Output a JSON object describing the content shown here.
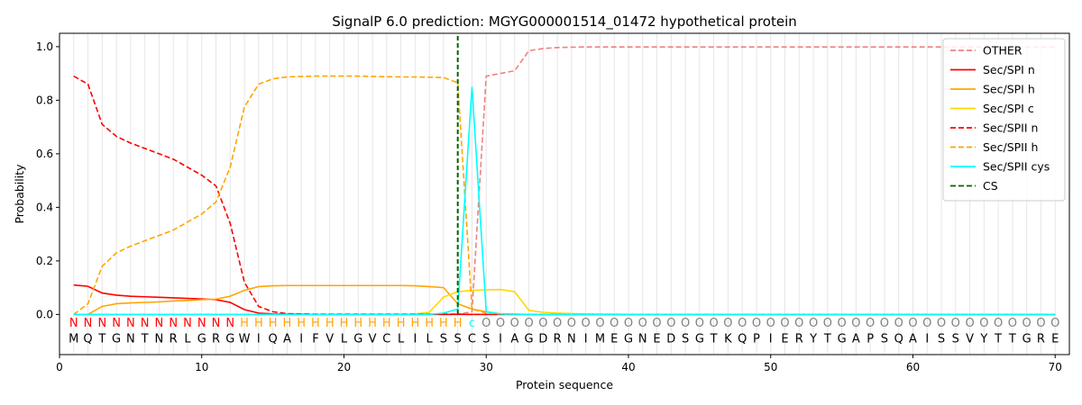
{
  "chart_data": {
    "type": "line",
    "title": "SignalP 6.0 prediction: MGYG000001514_01472 hypothetical protein",
    "xlabel": "Protein sequence",
    "ylabel": "Probability",
    "xlim": [
      0,
      71
    ],
    "ylim": [
      -0.15,
      1.05
    ],
    "xticks": [
      "0",
      "10",
      "20",
      "30",
      "40",
      "50",
      "60",
      "70"
    ],
    "yticks": [
      "0.0",
      "0.2",
      "0.4",
      "0.6",
      "0.8",
      "1.0"
    ],
    "legend_position": "top-right",
    "vertical_grid_every_residue": true,
    "sequence": [
      "M",
      "Q",
      "T",
      "G",
      "N",
      "T",
      "N",
      "R",
      "L",
      "G",
      "R",
      "G",
      "W",
      "I",
      "Q",
      "A",
      "I",
      "F",
      "V",
      "L",
      "G",
      "V",
      "C",
      "L",
      "I",
      "L",
      "S",
      "S",
      "C",
      "S",
      "I",
      "A",
      "G",
      "D",
      "R",
      "N",
      "I",
      "M",
      "E",
      "G",
      "N",
      "E",
      "D",
      "S",
      "G",
      "T",
      "K",
      "Q",
      "P",
      "I",
      "E",
      "R",
      "Y",
      "T",
      "G",
      "A",
      "P",
      "S",
      "Q",
      "A",
      "I",
      "S",
      "S",
      "V",
      "Y",
      "T",
      "T",
      "G",
      "R",
      "E"
    ],
    "labels": [
      "N",
      "N",
      "N",
      "N",
      "N",
      "N",
      "N",
      "N",
      "N",
      "N",
      "N",
      "N",
      "H",
      "H",
      "H",
      "H",
      "H",
      "H",
      "H",
      "H",
      "H",
      "H",
      "H",
      "H",
      "H",
      "H",
      "H",
      "H",
      "C",
      "O",
      "O",
      "O",
      "O",
      "O",
      "O",
      "O",
      "O",
      "O",
      "O",
      "O",
      "O",
      "O",
      "O",
      "O",
      "O",
      "O",
      "O",
      "O",
      "O",
      "O",
      "O",
      "O",
      "O",
      "O",
      "O",
      "O",
      "O",
      "O",
      "O",
      "O",
      "O",
      "O",
      "O",
      "O",
      "O",
      "O",
      "O",
      "O",
      "O",
      "O"
    ],
    "label_colors": {
      "N": "#ff0000",
      "H": "#ffa500",
      "C": "#00ffff",
      "O": "#808080"
    },
    "cs_position": 28,
    "x": [
      1,
      2,
      3,
      4,
      5,
      6,
      7,
      8,
      9,
      10,
      11,
      12,
      13,
      14,
      15,
      16,
      17,
      18,
      19,
      20,
      21,
      22,
      23,
      24,
      25,
      26,
      27,
      28,
      29,
      30,
      31,
      32,
      33,
      34,
      35,
      36,
      37,
      38,
      39,
      40,
      41,
      42,
      43,
      44,
      45,
      46,
      47,
      48,
      49,
      50,
      51,
      52,
      53,
      54,
      55,
      56,
      57,
      58,
      59,
      60,
      61,
      62,
      63,
      64,
      65,
      66,
      67,
      68,
      69,
      70
    ],
    "series": [
      {
        "name": "OTHER",
        "color": "#f08080",
        "dash": "dashed",
        "values": [
          0,
          0,
          0,
          0,
          0,
          0,
          0,
          0,
          0,
          0,
          0,
          0,
          0,
          0,
          0,
          0,
          0,
          0,
          0,
          0,
          0,
          0,
          0,
          0,
          0,
          0,
          0,
          0,
          0.01,
          0.89,
          0.9,
          0.91,
          0.985,
          0.993,
          0.997,
          0.998,
          0.999,
          0.999,
          0.999,
          0.999,
          0.999,
          0.999,
          0.999,
          0.999,
          0.999,
          0.999,
          0.999,
          0.999,
          0.999,
          0.999,
          0.999,
          0.999,
          0.999,
          0.999,
          0.999,
          0.999,
          0.999,
          0.999,
          0.999,
          0.999,
          0.999,
          0.999,
          0.999,
          0.999,
          0.999,
          0.999,
          0.999,
          0.999,
          0.999,
          0.999
        ]
      },
      {
        "name": "Sec/SPI n",
        "color": "#ff0000",
        "dash": "solid",
        "values": [
          0.11,
          0.105,
          0.08,
          0.072,
          0.068,
          0.066,
          0.064,
          0.062,
          0.06,
          0.058,
          0.055,
          0.045,
          0.018,
          0.005,
          0.002,
          0.001,
          0.001,
          0,
          0,
          0,
          0,
          0,
          0,
          0,
          0,
          0,
          0,
          0,
          0,
          0,
          0,
          0,
          0,
          0,
          0,
          0,
          0,
          0,
          0,
          0,
          0,
          0,
          0,
          0,
          0,
          0,
          0,
          0,
          0,
          0,
          0,
          0,
          0,
          0,
          0,
          0,
          0,
          0,
          0,
          0,
          0,
          0,
          0,
          0,
          0,
          0,
          0,
          0,
          0,
          0
        ]
      },
      {
        "name": "Sec/SPI h",
        "color": "#ffa500",
        "dash": "solid",
        "values": [
          0,
          0,
          0.03,
          0.04,
          0.043,
          0.045,
          0.047,
          0.05,
          0.052,
          0.055,
          0.057,
          0.068,
          0.09,
          0.104,
          0.107,
          0.108,
          0.108,
          0.108,
          0.108,
          0.108,
          0.108,
          0.108,
          0.108,
          0.108,
          0.107,
          0.104,
          0.1,
          0.04,
          0.02,
          0.01,
          0.002,
          0.001,
          0,
          0,
          0,
          0,
          0,
          0,
          0,
          0,
          0,
          0,
          0,
          0,
          0,
          0,
          0,
          0,
          0,
          0,
          0,
          0,
          0,
          0,
          0,
          0,
          0,
          0,
          0,
          0,
          0,
          0,
          0,
          0,
          0,
          0,
          0,
          0,
          0,
          0
        ]
      },
      {
        "name": "Sec/SPI c",
        "color": "#ffd700",
        "dash": "solid",
        "values": [
          0,
          0,
          0,
          0,
          0,
          0,
          0,
          0,
          0,
          0,
          0,
          0,
          0,
          0,
          0,
          0,
          0,
          0,
          0,
          0,
          0,
          0,
          0,
          0,
          0.002,
          0.008,
          0.065,
          0.085,
          0.09,
          0.092,
          0.093,
          0.085,
          0.015,
          0.008,
          0.005,
          0.003,
          0.002,
          0.001,
          0.001,
          0,
          0,
          0,
          0,
          0,
          0,
          0,
          0,
          0,
          0,
          0,
          0,
          0,
          0,
          0,
          0,
          0,
          0,
          0,
          0,
          0,
          0,
          0,
          0,
          0,
          0,
          0,
          0,
          0,
          0,
          0
        ]
      },
      {
        "name": "Sec/SPII n",
        "color": "#ff0000",
        "dash": "dashed",
        "values": [
          0.89,
          0.86,
          0.71,
          0.665,
          0.64,
          0.62,
          0.6,
          0.58,
          0.55,
          0.52,
          0.48,
          0.34,
          0.12,
          0.03,
          0.01,
          0.003,
          0.002,
          0.001,
          0.001,
          0.001,
          0.001,
          0.001,
          0.001,
          0.001,
          0.001,
          0.001,
          0.001,
          0.001,
          0,
          0,
          0,
          0,
          0,
          0,
          0,
          0,
          0,
          0,
          0,
          0,
          0,
          0,
          0,
          0,
          0,
          0,
          0,
          0,
          0,
          0,
          0,
          0,
          0,
          0,
          0,
          0,
          0,
          0,
          0,
          0,
          0,
          0,
          0,
          0,
          0,
          0,
          0,
          0,
          0,
          0
        ]
      },
      {
        "name": "Sec/SPII h",
        "color": "#ffa500",
        "dash": "dashed",
        "values": [
          0,
          0.04,
          0.18,
          0.23,
          0.255,
          0.275,
          0.295,
          0.315,
          0.345,
          0.375,
          0.42,
          0.55,
          0.775,
          0.86,
          0.88,
          0.887,
          0.889,
          0.89,
          0.89,
          0.89,
          0.89,
          0.889,
          0.888,
          0.887,
          0.887,
          0.886,
          0.885,
          0.865,
          0.02,
          0.005,
          0.002,
          0.001,
          0,
          0,
          0,
          0,
          0,
          0,
          0,
          0,
          0,
          0,
          0,
          0,
          0,
          0,
          0,
          0,
          0,
          0,
          0,
          0,
          0,
          0,
          0,
          0,
          0,
          0,
          0,
          0,
          0,
          0,
          0,
          0,
          0,
          0,
          0,
          0,
          0,
          0
        ]
      },
      {
        "name": "Sec/SPII cys",
        "color": "#00ffff",
        "dash": "solid",
        "values": [
          0,
          0,
          0,
          0,
          0,
          0,
          0,
          0,
          0,
          0,
          0,
          0,
          0,
          0,
          0,
          0,
          0,
          0,
          0,
          0,
          0,
          0,
          0,
          0,
          0,
          0,
          0.005,
          0.02,
          0.85,
          0.01,
          0.002,
          0.001,
          0,
          0,
          0,
          0,
          0,
          0,
          0,
          0,
          0,
          0,
          0,
          0,
          0,
          0,
          0,
          0,
          0,
          0,
          0,
          0,
          0,
          0,
          0,
          0,
          0,
          0,
          0,
          0,
          0,
          0,
          0,
          0,
          0,
          0,
          0,
          0,
          0,
          0
        ]
      }
    ],
    "legend": [
      {
        "name": "OTHER",
        "color": "#f08080",
        "dash": "dashed"
      },
      {
        "name": "Sec/SPI n",
        "color": "#ff0000",
        "dash": "solid"
      },
      {
        "name": "Sec/SPI h",
        "color": "#ffa500",
        "dash": "solid"
      },
      {
        "name": "Sec/SPI c",
        "color": "#ffd700",
        "dash": "solid"
      },
      {
        "name": "Sec/SPII n",
        "color": "#ff0000",
        "dash": "dashed"
      },
      {
        "name": "Sec/SPII h",
        "color": "#ffa500",
        "dash": "dashed"
      },
      {
        "name": "Sec/SPII cys",
        "color": "#00ffff",
        "dash": "solid"
      },
      {
        "name": "CS",
        "color": "#006400",
        "dash": "dashed"
      }
    ]
  }
}
